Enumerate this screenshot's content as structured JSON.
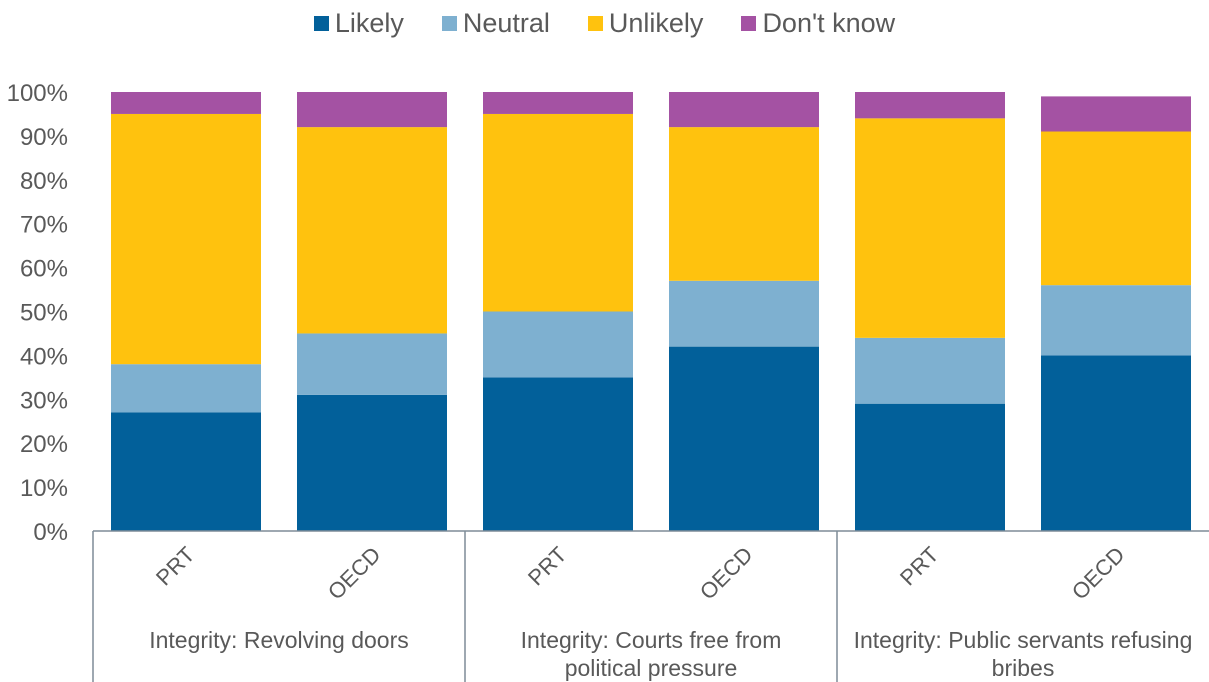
{
  "chart_data": {
    "type": "bar",
    "stacked": true,
    "legend_position": "top",
    "grid": false,
    "ylim": [
      0,
      100
    ],
    "y_ticks": [
      "0%",
      "10%",
      "20%",
      "30%",
      "40%",
      "50%",
      "60%",
      "70%",
      "80%",
      "90%",
      "100%"
    ],
    "groups": [
      {
        "label": "Integrity: Revolving doors",
        "categories": [
          "PRT",
          "OECD"
        ]
      },
      {
        "label": "Integrity:  Courts free from political pressure",
        "categories": [
          "PRT",
          "OECD"
        ]
      },
      {
        "label": "Integrity: Public servants refusing bribes",
        "categories": [
          "PRT",
          "OECD"
        ]
      }
    ],
    "categories": [
      "PRT",
      "OECD",
      "PRT",
      "OECD",
      "PRT",
      "OECD"
    ],
    "series": [
      {
        "name": "Likely",
        "color": "#02609A",
        "values": [
          27,
          31,
          35,
          42,
          29,
          40
        ]
      },
      {
        "name": "Neutral",
        "color": "#7EB0D0",
        "values": [
          11,
          14,
          15,
          15,
          15,
          16
        ]
      },
      {
        "name": "Unlikely",
        "color": "#FFC20E",
        "values": [
          57,
          47,
          45,
          35,
          50,
          35
        ]
      },
      {
        "name": "Don't know",
        "color": "#A452A3",
        "values": [
          5,
          8,
          5,
          8,
          6,
          8
        ]
      }
    ],
    "xlabel": "",
    "ylabel": ""
  }
}
